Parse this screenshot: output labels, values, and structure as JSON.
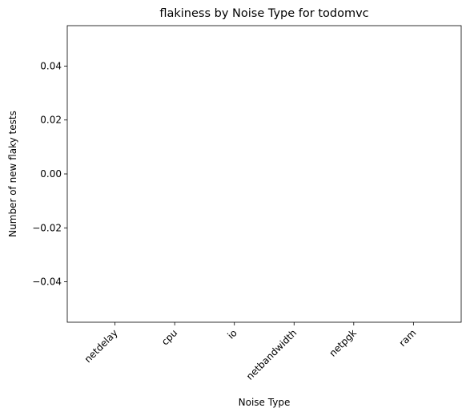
{
  "chart_data": {
    "type": "bar",
    "title": "flakiness by Noise Type for todomvc",
    "xlabel": "Noise Type",
    "ylabel": "Number of new flaky tests",
    "categories": [
      "netdelay",
      "cpu",
      "io",
      "netbandwidth",
      "netpgk",
      "ram"
    ],
    "values": [
      0,
      0,
      0,
      0,
      0,
      0
    ],
    "ylim": [
      -0.055,
      0.055
    ],
    "yticks": [
      -0.04,
      -0.02,
      0.0,
      0.02,
      0.04
    ],
    "ytick_labels": [
      "−0.04",
      "−0.02",
      "0.00",
      "0.02",
      "0.04"
    ],
    "grid": false,
    "legend": "none",
    "x_tick_rotation_deg": 45
  }
}
